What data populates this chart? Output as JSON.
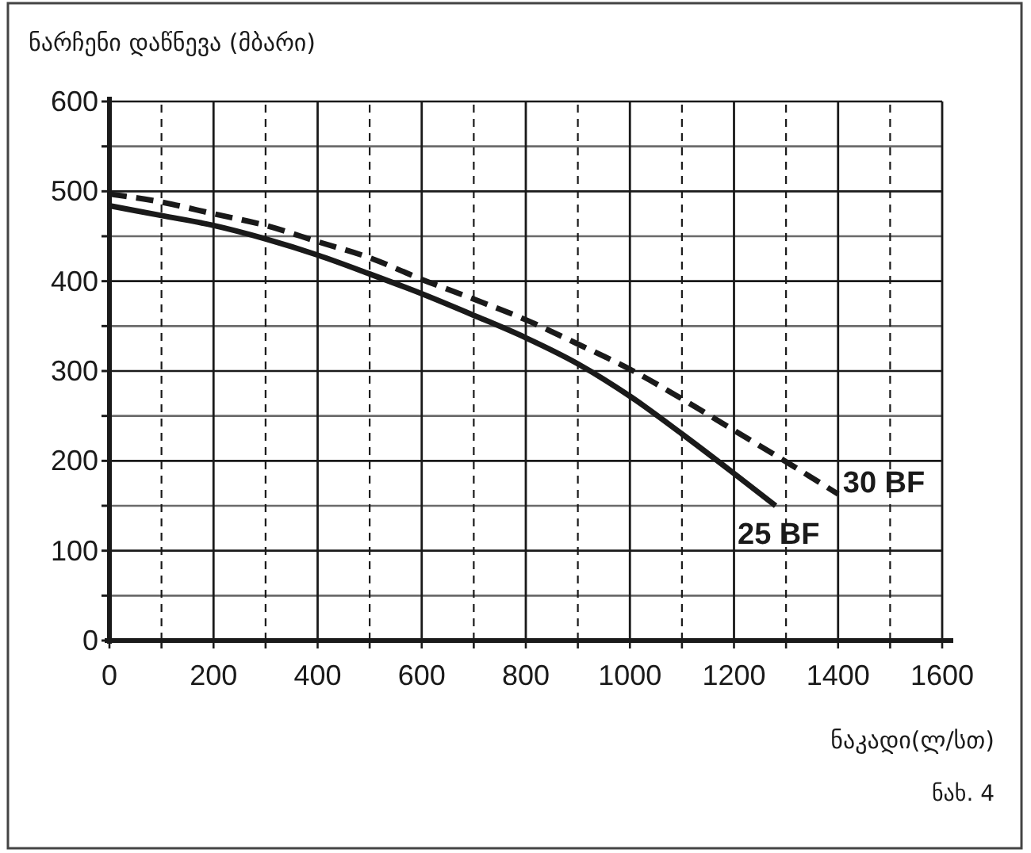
{
  "chart_data": {
    "type": "line",
    "ylabel": "ნარჩენი დაწნევა (მბარი)",
    "xlabel": "ნაკადი(ლ/სთ)",
    "annotations": [
      "ნახ. 4"
    ],
    "series": [
      {
        "name": "25 BF",
        "color": "#1a1a1a",
        "line_style": "solid",
        "x": [
          0,
          100,
          200,
          300,
          400,
          500,
          600,
          700,
          800,
          900,
          1000,
          1100,
          1200,
          1280
        ],
        "values": [
          484,
          473,
          462,
          447,
          429,
          408,
          386,
          362,
          337,
          308,
          272,
          230,
          186,
          150
        ]
      },
      {
        "name": "30 BF",
        "color": "#1a1a1a",
        "line_style": "dashed",
        "x": [
          0,
          100,
          200,
          300,
          400,
          500,
          600,
          700,
          800,
          900,
          1000,
          1100,
          1200,
          1300,
          1400
        ],
        "values": [
          497,
          488,
          475,
          462,
          444,
          426,
          402,
          380,
          357,
          330,
          302,
          269,
          234,
          199,
          163
        ]
      }
    ],
    "xlim": [
      0,
      1600
    ],
    "ylim": [
      0,
      600
    ],
    "xticks": [
      0,
      {
        "value": 100,
        "label": null
      },
      200,
      {
        "value": 300,
        "label": null
      },
      400,
      {
        "value": 500,
        "label": null
      },
      600,
      {
        "value": 700,
        "label": null
      },
      800,
      {
        "value": 900,
        "label": null
      },
      1000,
      {
        "value": 1100,
        "label": null
      },
      1200,
      {
        "value": 1300,
        "label": null
      },
      1400,
      {
        "value": 1500,
        "label": null
      },
      1600
    ],
    "yticks": [
      0,
      {
        "value": 50,
        "label": null
      },
      100,
      {
        "value": 150,
        "label": null
      },
      200,
      {
        "value": 250,
        "label": null
      },
      300,
      {
        "value": 350,
        "label": null
      },
      400,
      {
        "value": 450,
        "label": null
      },
      500,
      {
        "value": 550,
        "label": null
      },
      600
    ],
    "grid": true
  }
}
